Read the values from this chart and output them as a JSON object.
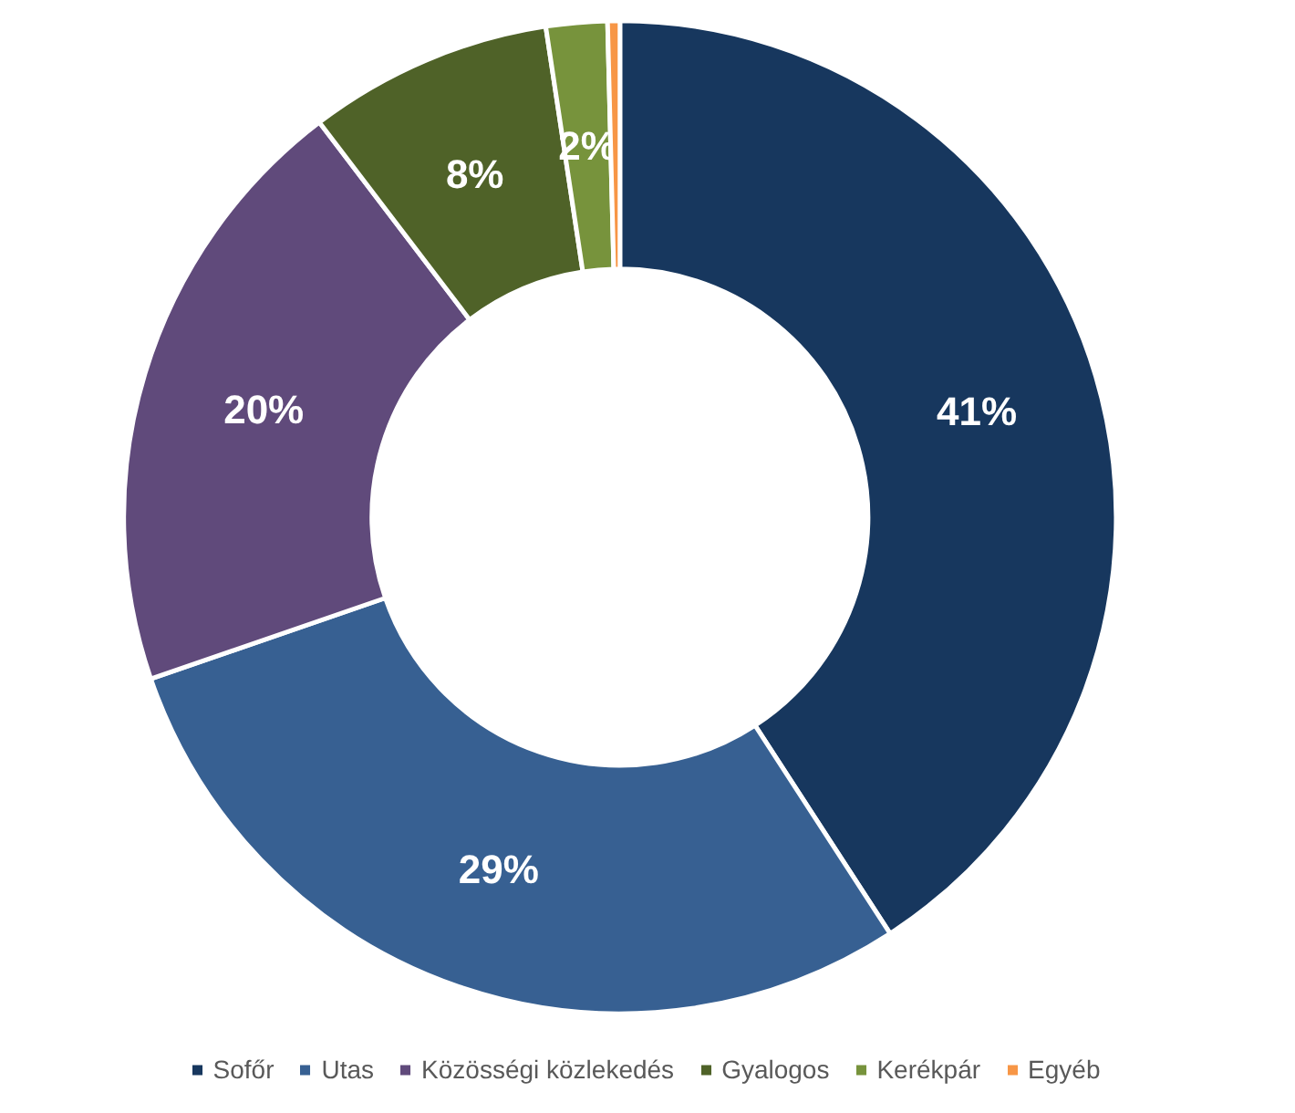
{
  "chart_data": {
    "type": "donut",
    "categories": [
      "Sofőr",
      "Utas",
      "Közösségi közlekedés",
      "Gyalogos",
      "Kerékpár",
      "Egyéb"
    ],
    "values": [
      41,
      29,
      20,
      8,
      2,
      0.4
    ],
    "colors": [
      "#17375e",
      "#376092",
      "#604a7b",
      "#4f6228",
      "#77933c",
      "#f79646"
    ],
    "value_labels": [
      "41%",
      "29%",
      "20%",
      "8%",
      "2%",
      null
    ],
    "legend": "bottom"
  }
}
